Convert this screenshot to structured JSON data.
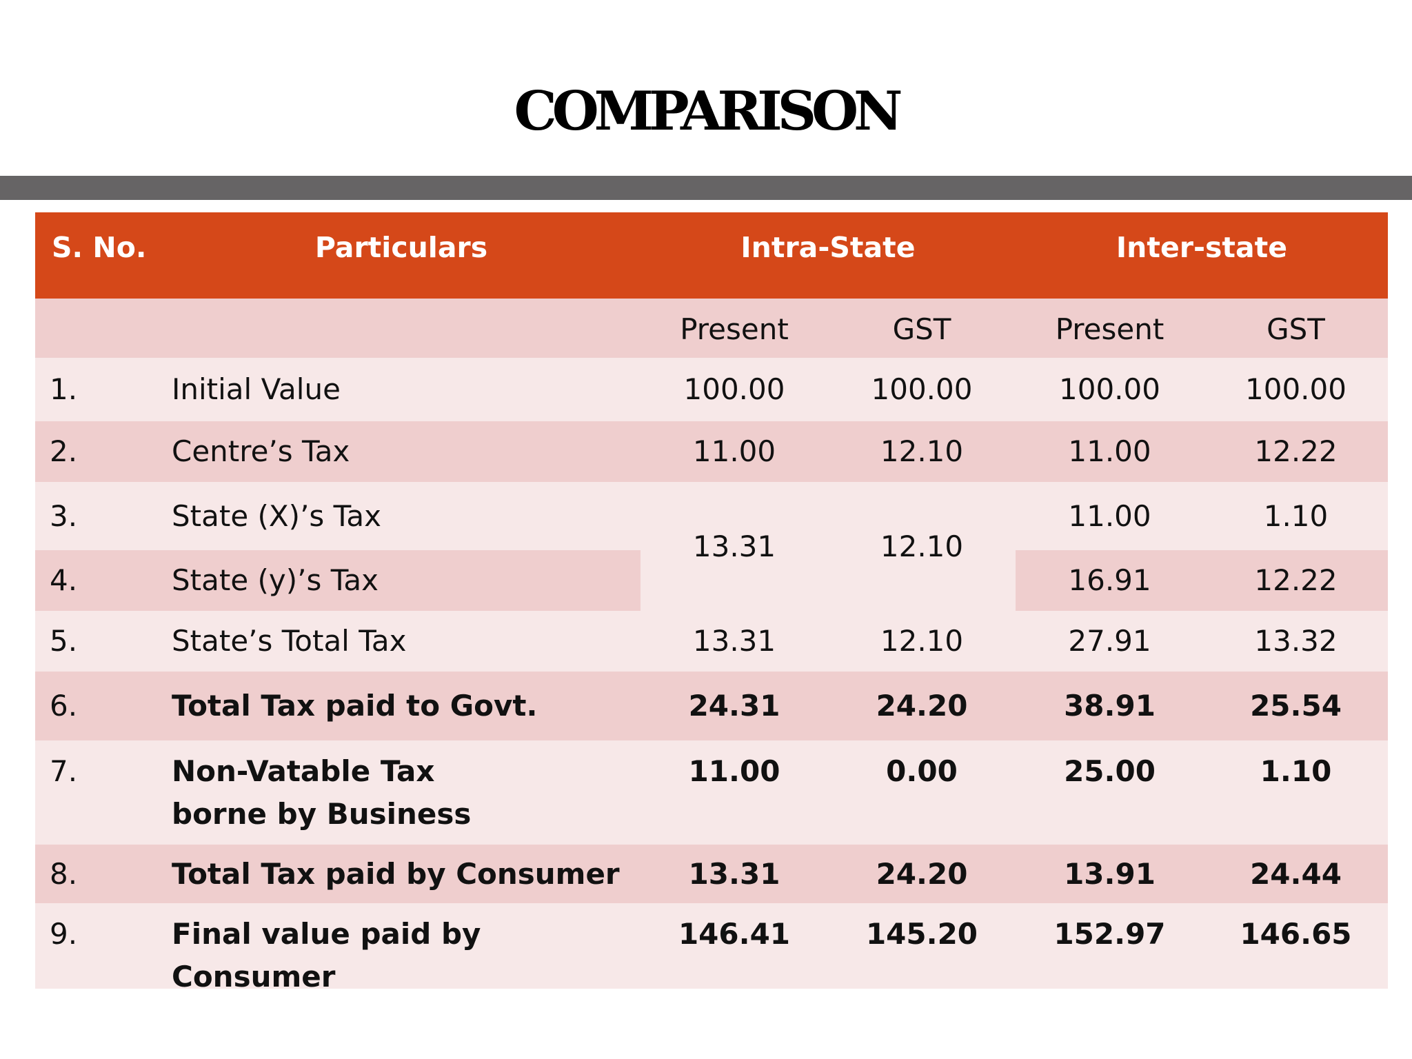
{
  "title": "COMPARISON",
  "headers": {
    "sno": "S. No.",
    "particulars": "Particulars",
    "intra": "Intra-State",
    "inter": "Inter-state"
  },
  "subheaders": {
    "intra_present": "Present",
    "intra_gst": "GST",
    "inter_present": "Present",
    "inter_gst": "GST"
  },
  "rows": [
    {
      "sno": "1.",
      "label": "Initial Value",
      "intra_present": "100.00",
      "intra_gst": "100.00",
      "inter_present": "100.00",
      "inter_gst": "100.00"
    },
    {
      "sno": "2.",
      "label": "Centre’s Tax",
      "intra_present": "11.00",
      "intra_gst": "12.10",
      "inter_present": "11.00",
      "inter_gst": "12.22"
    },
    {
      "sno": "3.",
      "label": "State (X)’s Tax",
      "inter_present": "11.00",
      "inter_gst": "1.10"
    },
    {
      "sno": "4.",
      "label": "State (y)’s Tax",
      "inter_present": "16.91",
      "inter_gst": "12.22"
    },
    {
      "sno": "5.",
      "label": "State’s Total Tax",
      "intra_present": "13.31",
      "intra_gst": "12.10",
      "inter_present": "27.91",
      "inter_gst": "13.32"
    },
    {
      "sno": "6.",
      "label": "Total Tax paid to Govt.",
      "intra_present": "24.31",
      "intra_gst": "24.20",
      "inter_present": "38.91",
      "inter_gst": "25.54"
    },
    {
      "sno": "7.",
      "label": "Non-Vatable Tax borne by Business",
      "intra_present": "11.00",
      "intra_gst": "0.00",
      "inter_present": "25.00",
      "inter_gst": "1.10"
    },
    {
      "sno": "8.",
      "label": "Total Tax paid by Consumer",
      "intra_present": "13.31",
      "intra_gst": "24.20",
      "inter_present": "13.91",
      "inter_gst": "24.44"
    },
    {
      "sno": "9.",
      "label": "Final value paid by Consumer",
      "intra_present": "146.41",
      "intra_gst": "145.20",
      "inter_present": "152.97",
      "inter_gst": "146.65"
    }
  ],
  "merged_state_tax": {
    "intra_present": "13.31",
    "intra_gst": "12.10"
  },
  "colors": {
    "header": "#d54819",
    "row_dark": "#efcece",
    "row_light": "#f7e8e8",
    "title_bar": "#666465"
  }
}
